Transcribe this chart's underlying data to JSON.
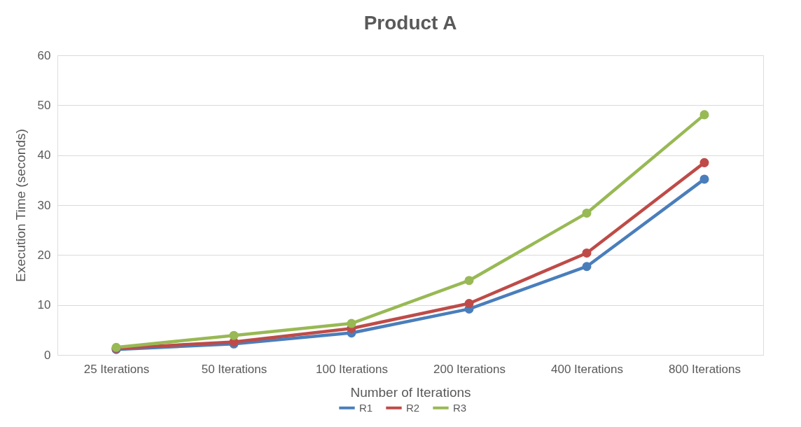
{
  "chart_data": {
    "type": "line",
    "title": "Product A",
    "xlabel": "Number of Iterations",
    "ylabel": "Execution Time (seconds)",
    "categories": [
      "25   Iterations",
      "50  Iterations",
      "100 Iterations",
      "200 Iterations",
      "400 Iterations",
      "800 Iterations"
    ],
    "series": [
      {
        "name": "R1",
        "color": "#4a7ebb",
        "values": [
          1.1,
          2.2,
          4.4,
          9.2,
          17.7,
          35.2
        ]
      },
      {
        "name": "R2",
        "color": "#be4b48",
        "values": [
          1.3,
          2.6,
          5.3,
          10.3,
          20.4,
          38.5
        ]
      },
      {
        "name": "R3",
        "color": "#98b954",
        "values": [
          1.5,
          3.9,
          6.3,
          14.9,
          28.4,
          48.1
        ]
      }
    ],
    "ylim": [
      0,
      60
    ],
    "yticks": [
      0,
      10,
      20,
      30,
      40,
      50,
      60
    ],
    "grid": "y",
    "legend": "bottom",
    "marker": "circle",
    "line_style": "solid"
  }
}
